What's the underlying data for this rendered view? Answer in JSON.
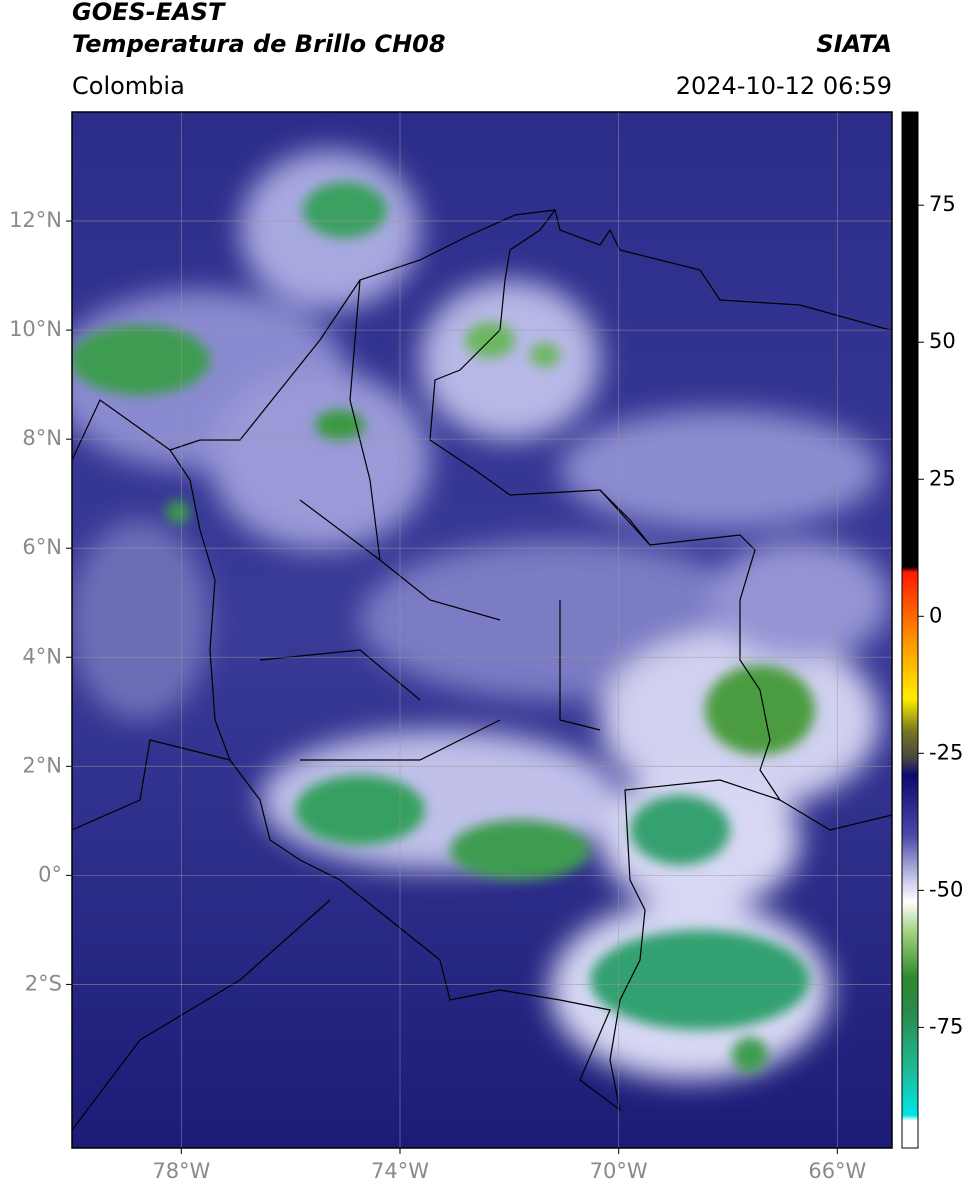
{
  "header": {
    "title": "GOES-EAST",
    "product": "Temperatura de Brillo CH08",
    "agency": "SIATA",
    "region": "Colombia",
    "datetime": "2024-10-12 06:59"
  },
  "map": {
    "xlim": [
      -80,
      -65
    ],
    "ylim": [
      -5,
      14
    ],
    "xticks": [
      {
        "value": -78,
        "label": "78°W"
      },
      {
        "value": -74,
        "label": "74°W"
      },
      {
        "value": -70,
        "label": "70°W"
      },
      {
        "value": -66,
        "label": "66°W"
      }
    ],
    "yticks": [
      {
        "value": -2,
        "label": "2°S"
      },
      {
        "value": 0,
        "label": "0°"
      },
      {
        "value": 2,
        "label": "2°N"
      },
      {
        "value": 4,
        "label": "4°N"
      },
      {
        "value": 6,
        "label": "6°N"
      },
      {
        "value": 8,
        "label": "8°N"
      },
      {
        "value": 10,
        "label": "10°N"
      },
      {
        "value": 12,
        "label": "12°N"
      }
    ],
    "grid": true
  },
  "colorbar": {
    "lim": [
      -97,
      92
    ],
    "ticks": [
      75,
      50,
      25,
      0,
      -25,
      -50,
      -75
    ],
    "stops": [
      {
        "value": 92,
        "color": "#000000"
      },
      {
        "value": 9,
        "color": "#000000"
      },
      {
        "value": 8,
        "color": "#ff1a00"
      },
      {
        "value": -5,
        "color": "#ff9900"
      },
      {
        "value": -15,
        "color": "#ffee00"
      },
      {
        "value": -21,
        "color": "#777722"
      },
      {
        "value": -26,
        "color": "#444444"
      },
      {
        "value": -29,
        "color": "#0b0b6e"
      },
      {
        "value": -40,
        "color": "#4a4aa8"
      },
      {
        "value": -48,
        "color": "#c8c8e8"
      },
      {
        "value": -52,
        "color": "#ffffff"
      },
      {
        "value": -58,
        "color": "#9ccf7a"
      },
      {
        "value": -66,
        "color": "#2e8b2e"
      },
      {
        "value": -72,
        "color": "#2a8a4a"
      },
      {
        "value": -82,
        "color": "#20b890"
      },
      {
        "value": -91,
        "color": "#00e5e5"
      },
      {
        "value": -92,
        "color": "#ffffff"
      },
      {
        "value": -97,
        "color": "#ffffff"
      }
    ]
  }
}
